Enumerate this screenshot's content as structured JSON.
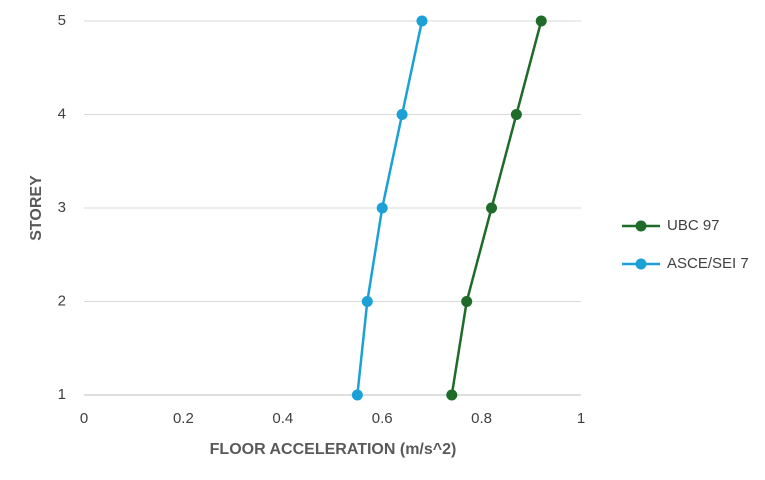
{
  "chart_data": {
    "type": "line",
    "x_label": "FLOOR ACCELERATION (m/s^2)",
    "y_label": "STOREY",
    "xlim": [
      0,
      1
    ],
    "xticks": [
      0,
      0.2,
      0.4,
      0.6,
      0.8,
      1
    ],
    "ylim": [
      1,
      5
    ],
    "yticks": [
      1,
      2,
      3,
      4,
      5
    ],
    "grid": true,
    "legend": "right",
    "series": [
      {
        "name": "UBC 97",
        "color": "#1e6b2a",
        "x": [
          0.74,
          0.77,
          0.82,
          0.87,
          0.92
        ],
        "values": [
          1,
          2,
          3,
          4,
          5
        ]
      },
      {
        "name": "ASCE/SEI 7",
        "color": "#1ba1d6",
        "x": [
          0.55,
          0.57,
          0.6,
          0.64,
          0.68
        ],
        "values": [
          1,
          2,
          3,
          4,
          5
        ]
      }
    ]
  }
}
